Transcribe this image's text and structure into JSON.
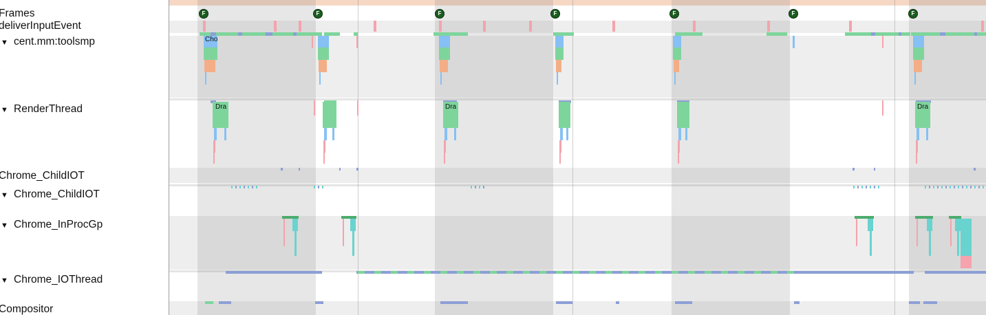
{
  "tracks": {
    "frames": {
      "label": "Frames"
    },
    "deliver": {
      "label": "deliverInputEvent"
    },
    "main": {
      "label": "cent.mm:toolsmp",
      "toggle": "▼",
      "slice_labels": [
        "Cho"
      ]
    },
    "render": {
      "label": "RenderThread",
      "toggle": "▼",
      "slice_labels": [
        "Dra",
        "Dra",
        "Dra"
      ]
    },
    "childio_summary": {
      "label": "Chrome_ChildIOT"
    },
    "childio": {
      "label": "Chrome_ChildIOT",
      "toggle": "▼"
    },
    "inprocgpu": {
      "label": "Chrome_InProcGp",
      "toggle": "▼"
    },
    "iothread": {
      "label": "Chrome_IOThread",
      "toggle": "▼"
    },
    "compositor": {
      "label": "Compositor"
    }
  },
  "frame_marker_text": "F",
  "frame_marker_count": 7,
  "colors": {
    "green": "#7ed59c",
    "blue": "#86c0f4",
    "orange": "#f3ae87",
    "pink": "#f5a3ac",
    "teal": "#69d3cf",
    "darkgreen": "#4dac6e",
    "iobar": "#8c9fd6",
    "frame_marker": "#1b5e20",
    "frame_band": "#f6d7c4"
  }
}
